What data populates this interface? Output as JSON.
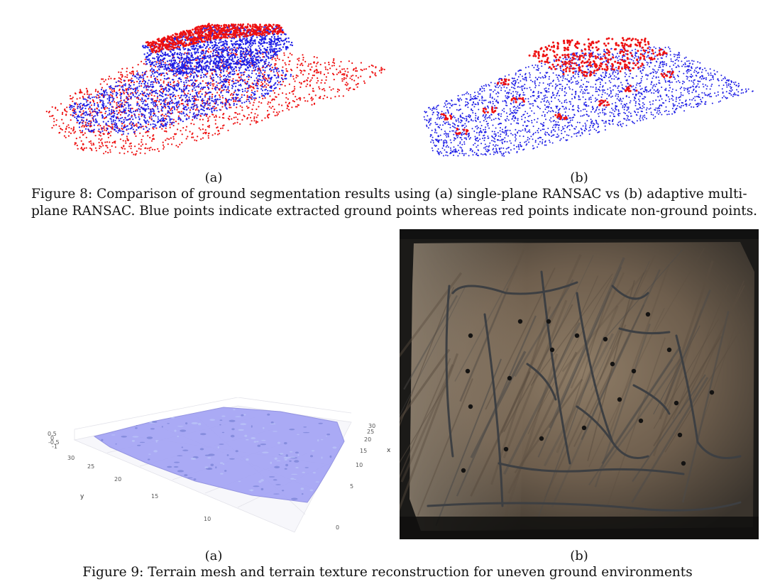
{
  "figure8": {
    "sub_a": "(a)",
    "sub_b": "(b)",
    "caption_line1": "Figure 8: Comparison of ground segmentation results using (a) single-plane RANSAC vs (b) adaptive multi-",
    "caption_line2": "plane RANSAC. Blue points indicate extracted ground points whereas red points indicate non-ground points.",
    "colors": {
      "ground": "#1f1fe6",
      "non_ground": "#ee1111"
    }
  },
  "figure9": {
    "sub_a": "(a)",
    "sub_b": "(b)",
    "caption": "Figure 9: Terrain mesh and terrain texture reconstruction for uneven ground environments",
    "mesh_plot": {
      "z_ticks": [
        "0.5",
        "0",
        "-0.5",
        "-1"
      ],
      "y_ticks": [
        "30",
        "25",
        "20",
        "15",
        "10"
      ],
      "x_ticks": [
        "30",
        "25",
        "20",
        "15",
        "10",
        "5",
        "0"
      ],
      "y_axis_label": "y",
      "x_axis_label": "x",
      "surface_color": "#a6a6f5"
    },
    "texture_colors": {
      "rock": "#7a6a58",
      "dark": "#1b1a18",
      "crack": "#3d3f42"
    }
  }
}
